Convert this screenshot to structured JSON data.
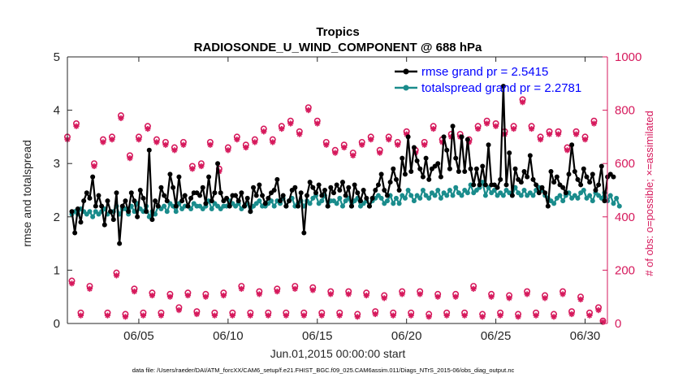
{
  "chart_data": {
    "type": "line",
    "title": "Tropics",
    "subtitle": "RADIOSONDE_U_WIND_COMPONENT @ 688 hPa",
    "xlabel": "Jun.01,2015 00:00:00 start",
    "ylabel": "rmse and totalspread",
    "y2label": "# of obs: o=possible; ×=assimilated",
    "footnote": "data file: /Users/raeder/DAI/ATM_forcXX/CAM6_setup/f.e21.FHIST_BGC.f09_025.CAM6assim.011/Diags_NTrS_2015-06/obs_diag_output.nc",
    "xlim": [
      1,
      31.25
    ],
    "ylim": [
      0,
      5
    ],
    "y2lim": [
      0,
      1000
    ],
    "xticks": [
      5,
      10,
      15,
      20,
      25,
      30
    ],
    "xtick_labels": [
      "06/05",
      "06/10",
      "06/15",
      "06/20",
      "06/25",
      "06/30"
    ],
    "yticks": [
      0,
      1,
      2,
      3,
      4,
      5
    ],
    "ytick_labels": [
      "0",
      "1",
      "2",
      "3",
      "4",
      "5"
    ],
    "y2ticks": [
      0,
      200,
      400,
      600,
      800,
      1000
    ],
    "y2tick_labels": [
      "0",
      "200",
      "400",
      "600",
      "800",
      "1000"
    ],
    "grid": false,
    "legend_position": "top-right",
    "colors": {
      "rmse": "#000000",
      "spread": "#1a8c8c",
      "obs": "#d6195c",
      "legend_text": "#0000ff"
    },
    "series": [
      {
        "name": "rmse grand pr = 2.5415",
        "color": "#000000",
        "axis": "left",
        "values": [
          2.1,
          1.7,
          2.15,
          1.9,
          2.3,
          2.45,
          2.35,
          2.75,
          2.2,
          2.4,
          2.2,
          1.85,
          2.3,
          2.1,
          1.95,
          2.45,
          1.5,
          2.2,
          2.3,
          2.1,
          2.45,
          2.3,
          2.0,
          2.5,
          2.35,
          2.1,
          3.25,
          1.95,
          2.3,
          2.2,
          2.55,
          2.4,
          2.3,
          2.8,
          2.55,
          2.2,
          2.75,
          2.3,
          2.4,
          2.2,
          2.35,
          2.45,
          2.45,
          2.4,
          2.55,
          2.25,
          2.75,
          2.3,
          2.45,
          3.0,
          2.45,
          2.3,
          2.35,
          2.2,
          2.4,
          2.4,
          2.3,
          2.45,
          2.2,
          2.35,
          2.1,
          2.55,
          2.4,
          2.6,
          2.4,
          2.25,
          2.35,
          2.45,
          2.5,
          2.7,
          2.3,
          2.4,
          2.2,
          2.3,
          2.5,
          2.55,
          2.2,
          2.45,
          1.7,
          2.4,
          2.65,
          2.55,
          2.45,
          2.6,
          2.4,
          2.5,
          2.2,
          2.55,
          2.45,
          2.6,
          2.5,
          2.65,
          2.4,
          2.55,
          2.2,
          2.6,
          2.45,
          2.3,
          2.5,
          2.35,
          2.2,
          2.35,
          2.5,
          2.6,
          2.8,
          2.5,
          2.4,
          2.65,
          2.9,
          2.7,
          2.5,
          3.1,
          2.8,
          3.5,
          2.85,
          3.3,
          3.05,
          2.9,
          2.75,
          3.1,
          2.7,
          2.9,
          2.95,
          3.0,
          2.75,
          3.5,
          3.25,
          2.9,
          3.7,
          3.1,
          2.85,
          3.5,
          2.85,
          3.45,
          2.9,
          2.6,
          2.9,
          2.6,
          2.95,
          2.6,
          3.35,
          2.6,
          2.6,
          2.55,
          2.7,
          4.45,
          2.6,
          3.2,
          2.4,
          2.9,
          2.7,
          2.65,
          2.85,
          2.75,
          3.15,
          2.7,
          2.6,
          2.45,
          2.55,
          2.45,
          2.2,
          2.85,
          2.65,
          2.75,
          2.6,
          2.55,
          2.45,
          2.8,
          3.35,
          2.85,
          2.7,
          2.6,
          2.9,
          2.75,
          2.65,
          2.8,
          2.5,
          2.6,
          2.95,
          2.3,
          2.75,
          2.8,
          2.75
        ],
        "x_start": 1.25,
        "x_step": 0.1667
      },
      {
        "name": "totalspread grand pr = 2.2781",
        "color": "#1a8c8c",
        "axis": "left",
        "values": [
          2.05,
          2.1,
          2.05,
          2.15,
          2.1,
          2.05,
          2.1,
          2.0,
          2.1,
          2.05,
          2.1,
          2.15,
          2.05,
          2.1,
          2.1,
          2.2,
          2.05,
          2.15,
          2.15,
          2.05,
          2.2,
          2.1,
          2.25,
          2.15,
          2.1,
          2.2,
          2.0,
          2.1,
          2.05,
          2.2,
          2.15,
          2.2,
          2.1,
          2.25,
          2.2,
          2.1,
          2.25,
          2.15,
          2.2,
          2.2,
          2.15,
          2.25,
          2.2,
          2.2,
          2.15,
          2.2,
          2.3,
          2.15,
          2.25,
          2.2,
          2.15,
          2.2,
          2.2,
          2.3,
          2.25,
          2.2,
          2.25,
          2.15,
          2.2,
          2.25,
          2.1,
          2.2,
          2.25,
          2.3,
          2.2,
          2.2,
          2.25,
          2.3,
          2.2,
          2.3,
          2.25,
          2.35,
          2.2,
          2.3,
          2.35,
          2.2,
          2.25,
          2.3,
          2.2,
          2.3,
          2.25,
          2.35,
          2.4,
          2.25,
          2.3,
          2.4,
          2.2,
          2.3,
          2.3,
          2.25,
          2.35,
          2.2,
          2.3,
          2.35,
          2.2,
          2.3,
          2.35,
          2.2,
          2.25,
          2.3,
          2.2,
          2.3,
          2.35,
          2.4,
          2.35,
          2.25,
          2.3,
          2.4,
          2.25,
          2.35,
          2.25,
          2.4,
          2.35,
          2.5,
          2.4,
          2.3,
          2.4,
          2.35,
          2.5,
          2.4,
          2.35,
          2.45,
          2.4,
          2.5,
          2.35,
          2.45,
          2.4,
          2.5,
          2.4,
          2.55,
          2.45,
          2.4,
          2.5,
          2.45,
          2.6,
          2.45,
          2.5,
          2.55,
          2.65,
          2.4,
          2.55,
          2.45,
          2.5,
          2.4,
          2.45,
          2.4,
          2.5,
          2.45,
          2.4,
          2.55,
          2.45,
          2.4,
          2.5,
          2.4,
          2.45,
          2.4,
          2.5,
          2.55,
          2.5,
          2.4,
          2.35,
          2.3,
          2.25,
          2.35,
          2.4,
          2.3,
          2.4,
          2.45,
          2.35,
          2.4,
          2.35,
          2.45,
          2.5,
          2.35,
          2.4,
          2.3,
          2.45,
          2.4,
          2.35,
          2.45,
          2.3,
          2.4,
          2.25,
          2.35,
          2.2
        ],
        "x_start": 1.25,
        "x_step": 0.1667
      }
    ],
    "obs_counts": {
      "axis": "right",
      "x_step": 0.25,
      "x_start": 1.0,
      "note": "alternating high (00Z/12Z) and low (06Z/18Z) report counts, shown as o (possible) and * (assimilated)",
      "high_x": [
        1.0,
        1.5,
        2.5,
        3.0,
        3.5,
        4.0,
        4.5,
        5.0,
        5.5,
        6.0,
        6.5,
        7.0,
        7.5,
        8.0,
        8.5,
        9.0,
        9.5,
        10.0,
        10.5,
        11.0,
        11.5,
        12.0,
        12.5,
        13.0,
        13.5,
        14.0,
        14.5,
        15.0,
        15.5,
        16.0,
        16.5,
        17.0,
        17.5,
        18.0,
        18.5,
        19.0,
        19.5,
        20.0,
        20.5,
        21.0,
        21.5,
        22.0,
        22.5,
        23.0,
        23.5,
        24.0,
        24.5,
        25.0,
        25.5,
        26.0,
        26.5,
        27.0,
        27.5,
        28.0,
        28.5,
        29.0,
        29.5,
        30.0,
        30.5
      ],
      "high_possible": [
        700,
        750,
        600,
        690,
        700,
        780,
        630,
        700,
        740,
        690,
        680,
        660,
        680,
        590,
        600,
        680,
        580,
        660,
        700,
        670,
        690,
        730,
        690,
        740,
        760,
        720,
        810,
        760,
        680,
        650,
        670,
        640,
        680,
        700,
        650,
        700,
        680,
        720,
        650,
        680,
        740,
        690,
        710,
        710,
        690,
        740,
        760,
        750,
        720,
        740,
        840,
        740,
        700,
        720,
        720,
        660,
        720,
        700,
        760
      ],
      "high_assimilated": [
        690,
        740,
        590,
        680,
        690,
        770,
        620,
        690,
        730,
        680,
        670,
        650,
        670,
        580,
        590,
        670,
        570,
        650,
        690,
        660,
        680,
        720,
        680,
        730,
        750,
        710,
        800,
        750,
        670,
        640,
        660,
        630,
        670,
        690,
        640,
        690,
        670,
        710,
        640,
        670,
        730,
        680,
        700,
        700,
        680,
        730,
        750,
        740,
        710,
        730,
        830,
        730,
        690,
        710,
        710,
        650,
        710,
        690,
        750
      ],
      "low_x": [
        1.25,
        1.75,
        2.25,
        3.25,
        3.75,
        4.25,
        4.75,
        5.25,
        5.75,
        6.25,
        6.75,
        7.25,
        7.75,
        8.25,
        8.75,
        9.25,
        9.75,
        10.25,
        10.75,
        11.25,
        11.75,
        12.25,
        12.75,
        13.25,
        13.75,
        14.25,
        14.75,
        15.25,
        15.75,
        16.25,
        16.75,
        17.25,
        17.75,
        18.25,
        18.75,
        19.25,
        19.75,
        20.25,
        20.75,
        21.25,
        21.75,
        22.25,
        22.75,
        23.25,
        23.75,
        24.25,
        24.75,
        25.25,
        25.75,
        26.25,
        26.75,
        27.25,
        27.75,
        28.25,
        28.75,
        29.25,
        29.75,
        30.25,
        30.75,
        31.0
      ],
      "low_possible": [
        160,
        40,
        140,
        40,
        190,
        35,
        130,
        40,
        115,
        40,
        110,
        60,
        115,
        45,
        110,
        40,
        115,
        40,
        140,
        40,
        120,
        40,
        130,
        40,
        140,
        40,
        135,
        40,
        120,
        40,
        120,
        35,
        115,
        45,
        105,
        40,
        120,
        40,
        120,
        35,
        110,
        40,
        110,
        40,
        140,
        35,
        110,
        40,
        105,
        35,
        120,
        40,
        105,
        35,
        120,
        45,
        100,
        40,
        60,
        10
      ],
      "low_assimilated": [
        150,
        30,
        130,
        30,
        180,
        25,
        120,
        30,
        105,
        30,
        100,
        50,
        105,
        35,
        100,
        30,
        105,
        30,
        130,
        30,
        110,
        30,
        120,
        30,
        130,
        30,
        125,
        30,
        110,
        30,
        110,
        25,
        105,
        35,
        95,
        30,
        110,
        30,
        110,
        25,
        100,
        30,
        100,
        30,
        130,
        25,
        100,
        30,
        95,
        25,
        110,
        30,
        95,
        25,
        110,
        35,
        90,
        30,
        50,
        5
      ]
    }
  }
}
